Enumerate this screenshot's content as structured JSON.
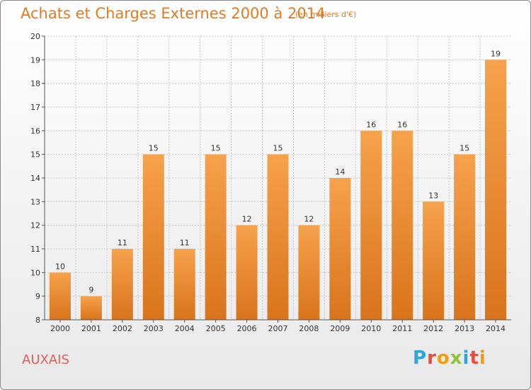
{
  "header": {
    "title": "Achats et Charges Externes 2000 à 2014",
    "subtitle": "(en milliers d'€)"
  },
  "footer": {
    "town": "AUXAIS",
    "logo_text": "Proxiti",
    "logo_letters": [
      {
        "ch": "P",
        "color": "#2aa6de"
      },
      {
        "ch": "r",
        "color": "#e94b3c"
      },
      {
        "ch": "o",
        "color": "#f39c12"
      },
      {
        "ch": "x",
        "color": "#8cc63f"
      },
      {
        "ch": "i",
        "color": "#2aa6de"
      },
      {
        "ch": "t",
        "color": "#e94b3c"
      },
      {
        "ch": "i",
        "color": "#f39c12"
      }
    ]
  },
  "colors": {
    "bar_top": "#f6a24c",
    "bar_bottom": "#d9741c",
    "axis": "#555555",
    "grid": "#c8c8c8",
    "text": "#333333"
  },
  "chart_data": {
    "type": "bar",
    "title": "Achats et Charges Externes 2000 à 2014",
    "subtitle": "(en milliers d'€)",
    "categories": [
      "2000",
      "2001",
      "2002",
      "2003",
      "2004",
      "2005",
      "2006",
      "2007",
      "2008",
      "2009",
      "2010",
      "2011",
      "2012",
      "2013",
      "2014"
    ],
    "values": [
      10,
      9,
      11,
      15,
      11,
      15,
      12,
      15,
      12,
      14,
      16,
      16,
      13,
      15,
      19
    ],
    "ylim": [
      8,
      20
    ],
    "yticks": [
      8,
      9,
      10,
      11,
      12,
      13,
      14,
      15,
      16,
      17,
      18,
      19,
      20
    ],
    "grid": true,
    "xlabel": "",
    "ylabel": ""
  }
}
